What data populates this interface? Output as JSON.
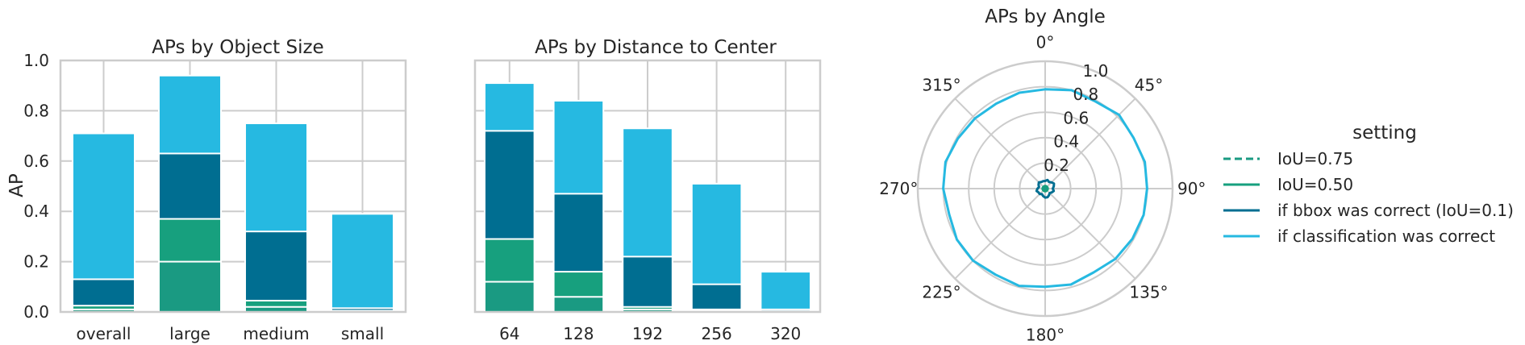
{
  "colors": {
    "iou75": "#1a9a82",
    "iou50": "#17a07e",
    "bbox": "#006e91",
    "cls": "#26b9e1",
    "grid": "#cccccc",
    "text": "#262626"
  },
  "chart_data": [
    {
      "type": "bar",
      "title": "APs by Object Size",
      "ylabel": "AP",
      "ylim": [
        0,
        1.0
      ],
      "yticks": [
        "0.0",
        "0.2",
        "0.4",
        "0.6",
        "0.8",
        "1.0"
      ],
      "categories": [
        "overall",
        "large",
        "medium",
        "small"
      ],
      "stacked_overlay": true,
      "series": [
        {
          "name": "if classification was correct",
          "values": [
            0.71,
            0.94,
            0.75,
            0.39
          ]
        },
        {
          "name": "if bbox was correct (IoU=0.1)",
          "values": [
            0.13,
            0.63,
            0.32,
            0.015
          ]
        },
        {
          "name": "IoU=0.50",
          "values": [
            0.025,
            0.37,
            0.045,
            0.005
          ]
        },
        {
          "name": "IoU=0.75",
          "values": [
            0.01,
            0.2,
            0.02,
            0.001
          ]
        }
      ]
    },
    {
      "type": "bar",
      "title": "APs by Distance to Center",
      "ylim": [
        0,
        1.0
      ],
      "categories": [
        "64",
        "128",
        "192",
        "256",
        "320"
      ],
      "stacked_overlay": true,
      "series": [
        {
          "name": "if classification was correct",
          "values": [
            0.91,
            0.84,
            0.73,
            0.51,
            0.16
          ]
        },
        {
          "name": "if bbox was correct (IoU=0.1)",
          "values": [
            0.72,
            0.47,
            0.22,
            0.11,
            0.01
          ]
        },
        {
          "name": "IoU=0.50",
          "values": [
            0.29,
            0.16,
            0.02,
            0.01,
            0.003
          ]
        },
        {
          "name": "IoU=0.75",
          "values": [
            0.12,
            0.06,
            0.01,
            0.005,
            0.001
          ]
        }
      ]
    },
    {
      "type": "polar_line",
      "title": "APs by Angle",
      "rlim": [
        0,
        1.0
      ],
      "rticks": [
        "0.2",
        "0.4",
        "0.6",
        "0.8",
        "1.0"
      ],
      "theta_labels": [
        "0°",
        "45°",
        "90°",
        "135°",
        "180°",
        "225°",
        "270°",
        "315°"
      ],
      "theta_deg": [
        0,
        15,
        30,
        45,
        60,
        75,
        90,
        105,
        120,
        135,
        150,
        165,
        180,
        195,
        210,
        225,
        240,
        255,
        270,
        285,
        300,
        315,
        330,
        345
      ],
      "series": [
        {
          "name": "if classification was correct",
          "values": [
            0.78,
            0.8,
            0.79,
            0.82,
            0.8,
            0.81,
            0.8,
            0.8,
            0.79,
            0.78,
            0.76,
            0.78,
            0.77,
            0.79,
            0.78,
            0.8,
            0.8,
            0.78,
            0.8,
            0.81,
            0.79,
            0.78,
            0.77,
            0.78
          ]
        },
        {
          "name": "if bbox was correct (IoU=0.1)",
          "values": [
            0.06,
            0.07,
            0.06,
            0.07,
            0.08,
            0.07,
            0.06,
            0.07,
            0.06,
            0.05,
            0.06,
            0.07,
            0.07,
            0.06,
            0.05,
            0.06,
            0.06,
            0.07,
            0.06,
            0.05,
            0.06,
            0.07,
            0.06,
            0.06
          ]
        },
        {
          "name": "IoU=0.50",
          "values": [
            0.02,
            0.02,
            0.02,
            0.02,
            0.02,
            0.02,
            0.02,
            0.02,
            0.02,
            0.02,
            0.02,
            0.02,
            0.02,
            0.02,
            0.02,
            0.02,
            0.02,
            0.02,
            0.02,
            0.02,
            0.02,
            0.02,
            0.02,
            0.02
          ]
        },
        {
          "name": "IoU=0.75",
          "values": [
            0.005,
            0.005,
            0.005,
            0.005,
            0.005,
            0.005,
            0.005,
            0.005,
            0.005,
            0.005,
            0.005,
            0.005,
            0.005,
            0.005,
            0.005,
            0.005,
            0.005,
            0.005,
            0.005,
            0.005,
            0.005,
            0.005,
            0.005,
            0.005
          ]
        }
      ]
    }
  ],
  "legend": {
    "title": "setting",
    "placement": "right",
    "items": [
      {
        "label": "IoU=0.75",
        "dashed": true,
        "color_key": "iou75"
      },
      {
        "label": "IoU=0.50",
        "dashed": false,
        "color_key": "iou50"
      },
      {
        "label": "if bbox was correct (IoU=0.1)",
        "dashed": false,
        "color_key": "bbox"
      },
      {
        "label": "if classification was correct",
        "dashed": false,
        "color_key": "cls"
      }
    ]
  }
}
